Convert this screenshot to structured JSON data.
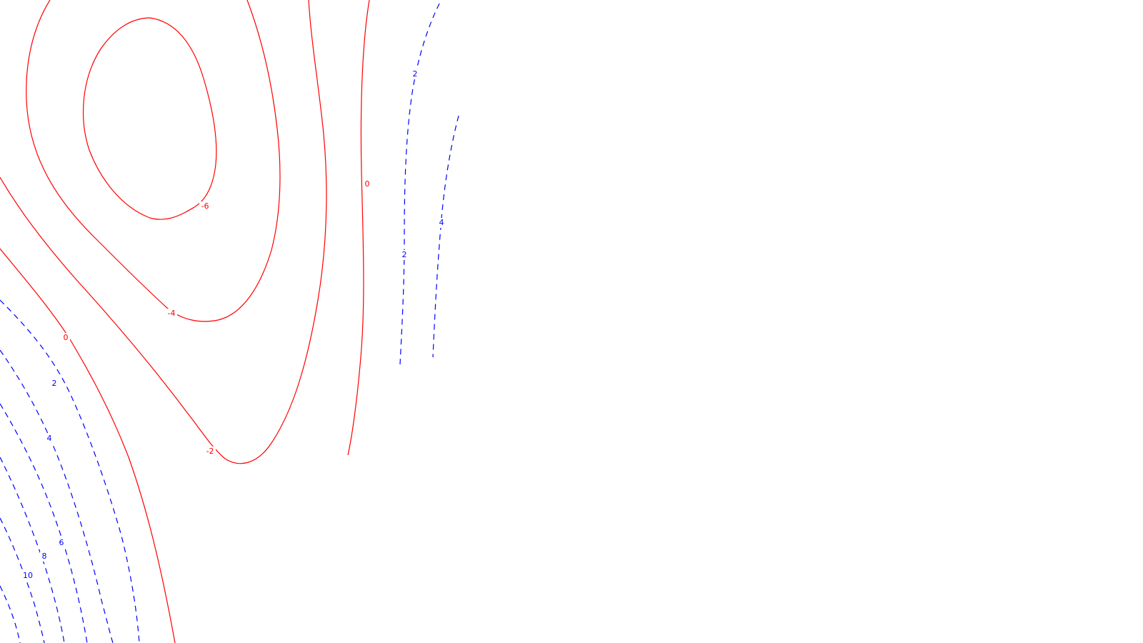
{
  "colors": {
    "negative": "#ff0000",
    "positive": "#0000ff",
    "background": "#ffffff"
  },
  "contour_labels": {
    "neg6": "-6",
    "neg4": "-4",
    "neg2": "-2",
    "zero_left": "0",
    "zero_right": "0",
    "pos2_left": "2",
    "pos4_left": "4",
    "pos6_left": "6",
    "pos8_left": "8",
    "pos10_left": "10",
    "pos2_right_top": "2",
    "pos2_right_mid": "2",
    "pos4_right": "4"
  }
}
